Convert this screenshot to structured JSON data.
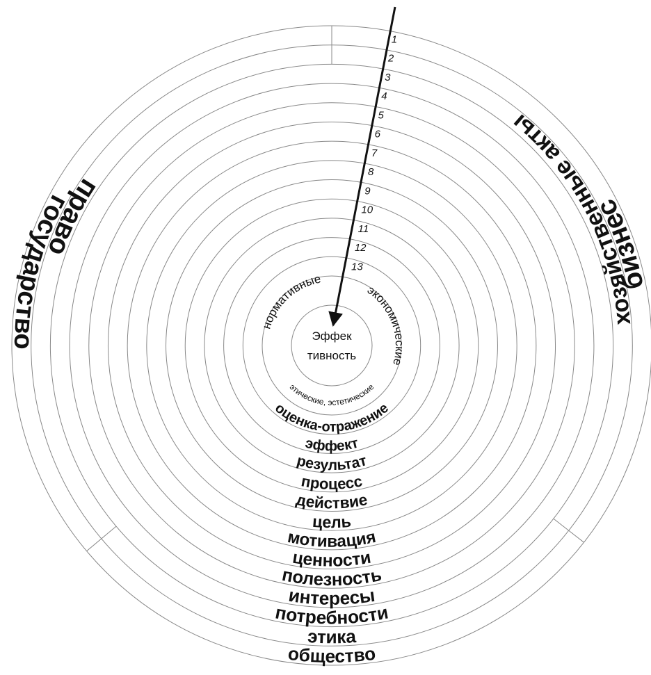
{
  "center_label": [
    "Эффек",
    "тивность"
  ],
  "inner_ring": [
    "нормативные",
    "экономические",
    "этические, эстетические"
  ],
  "rings": [
    "оценка-отражение",
    "эффект",
    "результат",
    "процесс",
    "действие",
    "цель",
    "мотивация",
    "ценности",
    "полезность",
    "интересы",
    "потребности",
    "этика",
    "общество"
  ],
  "ring_numbers": [
    1,
    2,
    3,
    4,
    5,
    6,
    7,
    8,
    9,
    10,
    11,
    12,
    13
  ],
  "left_labels": [
    "право",
    "государство"
  ],
  "right_labels": [
    "хозяйственные акты",
    "бизнес"
  ]
}
